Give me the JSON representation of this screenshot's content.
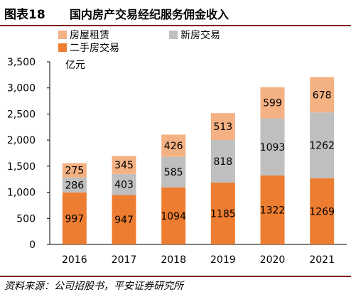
{
  "header": {
    "figure_label": "图表18",
    "title": "国内房产交易经纪服务佣金收入"
  },
  "source": "资料来源：公司招股书，平安证券研究所",
  "chart_data": {
    "type": "bar",
    "stacked": true,
    "categories": [
      "2016",
      "2017",
      "2018",
      "2019",
      "2020",
      "2021"
    ],
    "series": [
      {
        "name": "二手房交易",
        "values": [
          997,
          947,
          1094,
          1185,
          1322,
          1269
        ],
        "color": "#ed7d31"
      },
      {
        "name": "新房交易",
        "values": [
          286,
          403,
          585,
          818,
          1093,
          1262
        ],
        "color": "#bfbfbf"
      },
      {
        "name": "房屋租赁",
        "values": [
          275,
          345,
          426,
          513,
          599,
          678
        ],
        "color": "#f4b183"
      }
    ],
    "ylabel": "亿元",
    "ylim": [
      0,
      3500
    ],
    "yticks": [
      "0",
      "500",
      "1,000",
      "1,500",
      "2,000",
      "2,500",
      "3,000",
      "3,500"
    ],
    "ytick_values": [
      0,
      500,
      1000,
      1500,
      2000,
      2500,
      3000,
      3500
    ],
    "legend_position": "top-left",
    "legend_order": [
      "房屋租赁",
      "新房交易",
      "二手房交易"
    ],
    "grid": false
  }
}
